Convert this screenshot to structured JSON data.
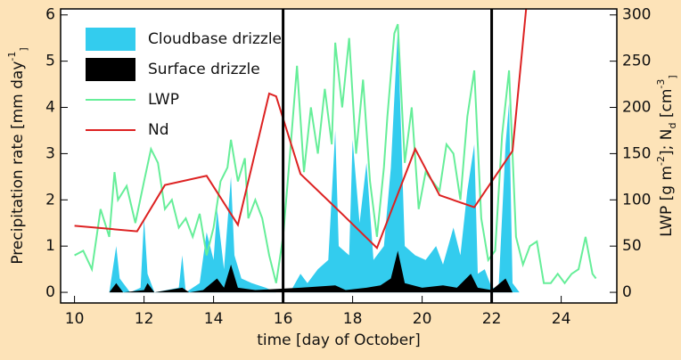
{
  "chart_data": {
    "type": "area-line",
    "xlabel": "time [day of October]",
    "ylabel": [
      "Precipitation rate [mm day",
      "-1",
      "]"
    ],
    "y2label": [
      "LWP [g m",
      "-2",
      "]; N",
      "d",
      " [cm",
      "-3",
      "]"
    ],
    "xlim": [
      9.6,
      25.6
    ],
    "xticks": [
      10,
      12,
      14,
      16,
      18,
      20,
      22,
      24
    ],
    "ylim": [
      -0.23,
      6.13
    ],
    "yticks": [
      0,
      1,
      2,
      3,
      4,
      5,
      6
    ],
    "y2lim": [
      -11.5,
      306.5
    ],
    "y2ticks": [
      0,
      50,
      100,
      150,
      200,
      250,
      300
    ],
    "vlines": [
      16,
      22
    ],
    "legend": "upper left",
    "series": [
      {
        "name": "Cloudbase drizzle",
        "kind": "area",
        "color": "#33ccee",
        "x": [
          11.0,
          11.2,
          11.3,
          11.6,
          11.9,
          12.0,
          12.1,
          12.3,
          13.0,
          13.1,
          13.2,
          13.6,
          13.8,
          14.0,
          14.1,
          14.3,
          14.5,
          14.6,
          14.8,
          15.1,
          15.5,
          15.8,
          16.2,
          16.5,
          16.7,
          17.0,
          17.3,
          17.5,
          17.6,
          17.9,
          18.0,
          18.2,
          18.4,
          18.6,
          18.9,
          19.1,
          19.3,
          19.5,
          19.8,
          20.1,
          20.4,
          20.6,
          20.9,
          21.1,
          21.3,
          21.5,
          21.6,
          21.8,
          22.0,
          22.2,
          22.4,
          22.5,
          22.6,
          22.8
        ],
        "values": [
          0,
          1.0,
          0.3,
          0,
          0.1,
          1.6,
          0.4,
          0,
          0.1,
          0.8,
          0,
          0.2,
          1.3,
          0.7,
          1.8,
          0.5,
          2.5,
          0.8,
          0.3,
          0.2,
          0.1,
          0,
          0,
          0.4,
          0.2,
          0.5,
          0.7,
          3.5,
          1.0,
          0.8,
          3.3,
          1.5,
          2.8,
          0.7,
          1.0,
          2.7,
          5.7,
          1.0,
          0.8,
          0.7,
          1.0,
          0.6,
          1.4,
          0.8,
          2.2,
          3.2,
          0.4,
          0.5,
          0.1,
          0.1,
          3.2,
          4.1,
          0.2,
          0
        ]
      },
      {
        "name": "Surface drizzle",
        "kind": "area",
        "color": "#000000",
        "x": [
          11.0,
          11.2,
          11.4,
          12.0,
          12.1,
          12.3,
          13.1,
          13.3,
          13.7,
          14.1,
          14.3,
          14.5,
          14.7,
          15.2,
          16.5,
          17.5,
          17.8,
          18.4,
          18.8,
          19.1,
          19.3,
          19.5,
          20.0,
          20.6,
          21.0,
          21.4,
          21.6,
          22.0,
          22.4,
          22.6
        ],
        "values": [
          0,
          0.2,
          0,
          0.05,
          0.2,
          0,
          0.1,
          0,
          0.05,
          0.3,
          0.1,
          0.6,
          0.1,
          0.05,
          0.1,
          0.15,
          0.05,
          0.1,
          0.15,
          0.3,
          0.9,
          0.2,
          0.1,
          0.15,
          0.1,
          0.4,
          0.1,
          0.05,
          0.3,
          0
        ]
      },
      {
        "name": "LWP",
        "kind": "line",
        "axis": "y2",
        "color": "#66ee99",
        "x": [
          10.0,
          10.25,
          10.5,
          10.75,
          11.0,
          11.15,
          11.25,
          11.5,
          11.75,
          12.0,
          12.2,
          12.4,
          12.6,
          12.8,
          13.0,
          13.2,
          13.4,
          13.6,
          13.8,
          14.0,
          14.2,
          14.4,
          14.5,
          14.7,
          14.9,
          15.0,
          15.2,
          15.4,
          15.6,
          15.8,
          16.0,
          16.2,
          16.4,
          16.6,
          16.8,
          17.0,
          17.2,
          17.4,
          17.5,
          17.7,
          17.9,
          18.1,
          18.3,
          18.5,
          18.7,
          18.9,
          19.0,
          19.2,
          19.3,
          19.5,
          19.7,
          19.9,
          20.1,
          20.3,
          20.5,
          20.7,
          20.9,
          21.1,
          21.3,
          21.5,
          21.7,
          21.9,
          22.1,
          22.3,
          22.5,
          22.7,
          22.9,
          23.1,
          23.3,
          23.5,
          23.7,
          23.9,
          24.1,
          24.3,
          24.5,
          24.7,
          24.9,
          25.0
        ],
        "values": [
          40,
          45,
          25,
          90,
          60,
          130,
          100,
          115,
          75,
          120,
          155,
          140,
          90,
          100,
          70,
          80,
          60,
          85,
          40,
          70,
          120,
          135,
          165,
          120,
          145,
          80,
          100,
          80,
          40,
          10,
          60,
          150,
          245,
          130,
          200,
          150,
          220,
          160,
          270,
          200,
          275,
          150,
          230,
          120,
          60,
          135,
          190,
          280,
          290,
          140,
          200,
          90,
          130,
          120,
          110,
          160,
          150,
          100,
          190,
          240,
          80,
          35,
          45,
          170,
          240,
          60,
          30,
          50,
          55,
          10,
          10,
          20,
          10,
          20,
          25,
          60,
          20,
          15
        ]
      },
      {
        "name": "Nd",
        "kind": "line",
        "axis": "y2",
        "color": "#dd2222",
        "x": [
          10.0,
          11.8,
          12.6,
          13.8,
          14.7,
          15.6,
          15.8,
          16.5,
          17.5,
          18.7,
          19.8,
          20.5,
          21.5,
          22.6,
          23.0
        ],
        "values": [
          72,
          66,
          116,
          126,
          73,
          215,
          212,
          128,
          92,
          48,
          155,
          105,
          92,
          153,
          310
        ]
      }
    ]
  }
}
